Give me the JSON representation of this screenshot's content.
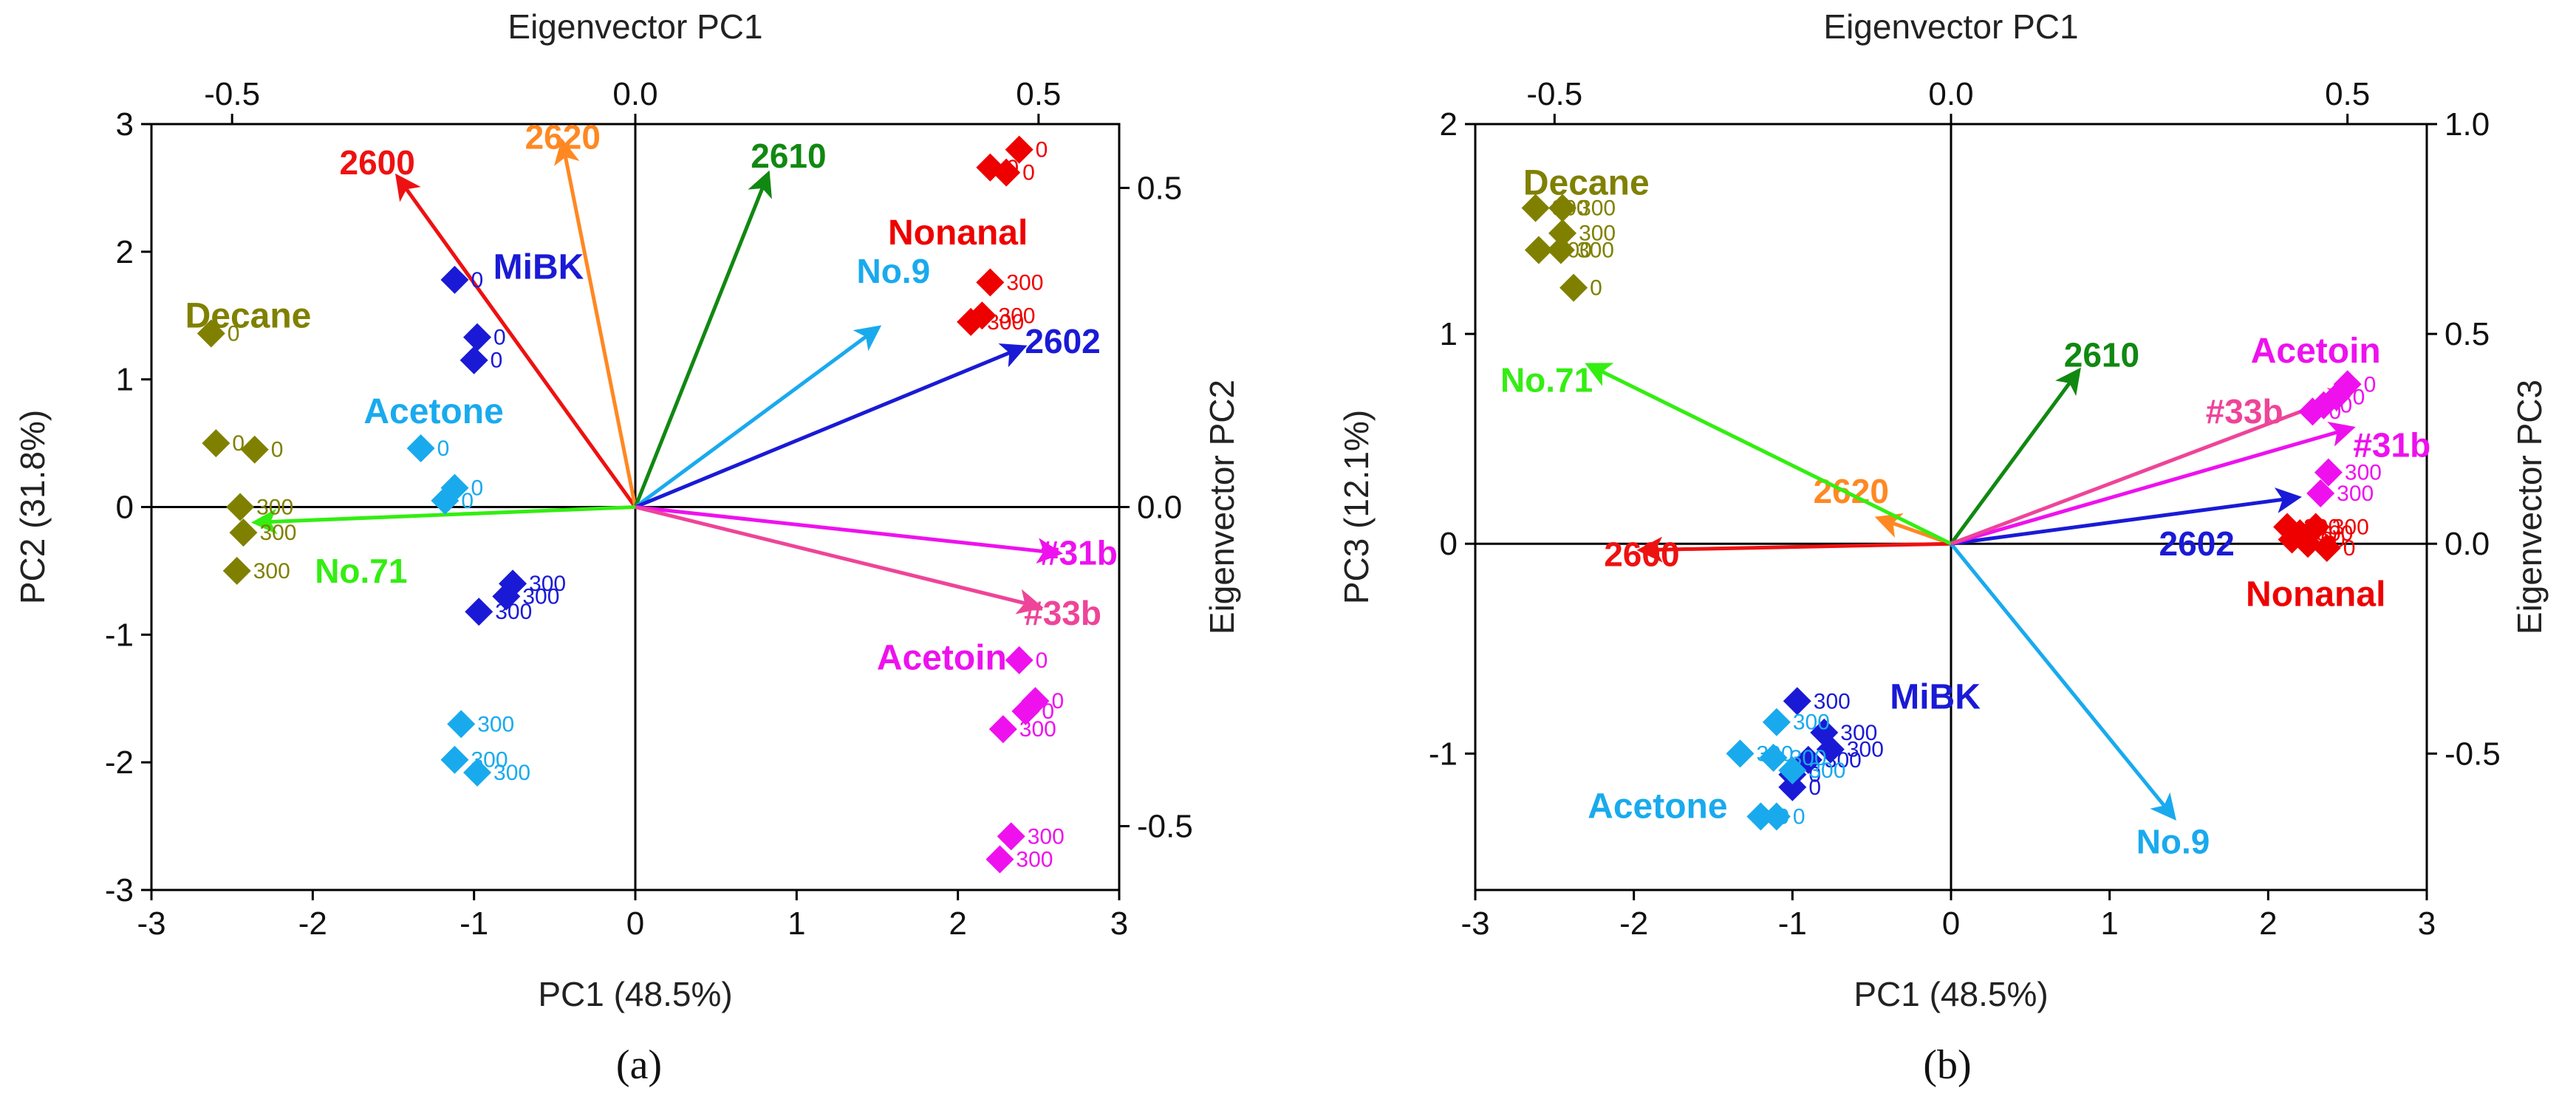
{
  "chart_data": [
    {
      "type": "scatter",
      "panel_label": "(a)",
      "title": "",
      "xlabel": "PC1 (48.5%)",
      "ylabel": "PC2 (31.8%)",
      "top_xlabel": "Eigenvector PC1",
      "right_ylabel": "Eigenvector PC2",
      "xlim": [
        -3,
        3
      ],
      "ylim": [
        -3,
        3
      ],
      "xticks": [
        "-3",
        "-2",
        "-1",
        "0",
        "1",
        "2",
        "3"
      ],
      "yticks": [
        "-3",
        "-2",
        "-1",
        "0",
        "1",
        "2",
        "3"
      ],
      "top_lim": [
        -0.6,
        0.6
      ],
      "top_ticks": [
        "-0.5",
        "0.0",
        "0.5"
      ],
      "right_lim": [
        -0.6,
        0.6
      ],
      "right_ticks": [
        "-0.5",
        "0.0",
        "0.5"
      ],
      "groups": [
        {
          "name": "Decane",
          "color": "#808000",
          "label_at": [
            -2.4,
            1.5
          ],
          "points": [
            {
              "x": -2.63,
              "y": 1.36,
              "label": "0"
            },
            {
              "x": -2.6,
              "y": 0.5,
              "label": "0"
            },
            {
              "x": -2.36,
              "y": 0.45,
              "label": "0"
            },
            {
              "x": -2.45,
              "y": 0.0,
              "label": "300"
            },
            {
              "x": -2.43,
              "y": -0.2,
              "label": "300"
            },
            {
              "x": -2.47,
              "y": -0.5,
              "label": "300"
            }
          ]
        },
        {
          "name": "MiBK",
          "color": "#1a1ad6",
          "label_at": [
            -0.6,
            1.88
          ],
          "points": [
            {
              "x": -1.12,
              "y": 1.78,
              "label": "0"
            },
            {
              "x": -0.98,
              "y": 1.33,
              "label": "0"
            },
            {
              "x": -1.0,
              "y": 1.15,
              "label": "0"
            },
            {
              "x": -0.76,
              "y": -0.6,
              "label": "300"
            },
            {
              "x": -0.8,
              "y": -0.7,
              "label": "300"
            },
            {
              "x": -0.97,
              "y": -0.82,
              "label": "300"
            }
          ]
        },
        {
          "name": "Acetone",
          "color": "#19aaee",
          "label_at": [
            -1.25,
            0.75
          ],
          "points": [
            {
              "x": -1.33,
              "y": 0.46,
              "label": "0"
            },
            {
              "x": -1.12,
              "y": 0.15,
              "label": "0"
            },
            {
              "x": -1.18,
              "y": 0.05,
              "label": "0"
            },
            {
              "x": -1.08,
              "y": -1.7,
              "label": "300"
            },
            {
              "x": -1.12,
              "y": -1.98,
              "label": "300"
            },
            {
              "x": -0.98,
              "y": -2.08,
              "label": "300"
            }
          ]
        },
        {
          "name": "Nonanal",
          "color": "#ee0000",
          "label_at": [
            2.0,
            2.15
          ],
          "points": [
            {
              "x": 2.38,
              "y": 2.8,
              "label": "0"
            },
            {
              "x": 2.2,
              "y": 2.66,
              "label": "0"
            },
            {
              "x": 2.3,
              "y": 2.62,
              "label": "0"
            },
            {
              "x": 2.2,
              "y": 1.76,
              "label": "300"
            },
            {
              "x": 2.15,
              "y": 1.5,
              "label": "300"
            },
            {
              "x": 2.08,
              "y": 1.45,
              "label": "300"
            }
          ]
        },
        {
          "name": "Acetoin",
          "color": "#ee11ee",
          "label_at": [
            1.9,
            -1.18
          ],
          "points": [
            {
              "x": 2.38,
              "y": -1.2,
              "label": "0"
            },
            {
              "x": 2.48,
              "y": -1.52,
              "label": "0"
            },
            {
              "x": 2.42,
              "y": -1.6,
              "label": "0"
            },
            {
              "x": 2.28,
              "y": -1.74,
              "label": "300"
            },
            {
              "x": 2.33,
              "y": -2.58,
              "label": "300"
            },
            {
              "x": 2.26,
              "y": -2.76,
              "label": "300"
            }
          ]
        }
      ],
      "loadings": [
        {
          "name": "2600",
          "color": "#ee1111",
          "x": -1.47,
          "y": 2.58,
          "label_at": [
            -1.6,
            2.7
          ]
        },
        {
          "name": "2620",
          "color": "#ff8822",
          "x": -0.45,
          "y": 2.85,
          "label_at": [
            -0.45,
            2.9
          ]
        },
        {
          "name": "2610",
          "color": "#118811",
          "x": 0.82,
          "y": 2.6,
          "label_at": [
            0.95,
            2.75
          ]
        },
        {
          "name": "No.9",
          "color": "#19aaee",
          "x": 1.5,
          "y": 1.4,
          "label_at": [
            1.6,
            1.85
          ]
        },
        {
          "name": "2602",
          "color": "#1a1ad6",
          "x": 2.4,
          "y": 1.25,
          "label_at": [
            2.65,
            1.3
          ]
        },
        {
          "name": "No.71",
          "color": "#33ee11",
          "x": -2.35,
          "y": -0.12,
          "label_at": [
            -1.7,
            -0.5
          ]
        },
        {
          "name": "#31b",
          "color": "#ee11ee",
          "x": 2.62,
          "y": -0.36,
          "label_at": [
            2.75,
            -0.36
          ]
        },
        {
          "name": "#33b",
          "color": "#ee4499",
          "x": 2.5,
          "y": -0.78,
          "label_at": [
            2.65,
            -0.83
          ]
        }
      ]
    },
    {
      "type": "scatter",
      "panel_label": "(b)",
      "title": "",
      "xlabel": "PC1 (48.5%)",
      "ylabel": "PC3 (12.1%)",
      "top_xlabel": "Eigenvector PC1",
      "right_ylabel": "Eigenvector PC3",
      "xlim": [
        -3,
        3
      ],
      "ylim": [
        -1.65,
        2.0
      ],
      "xticks": [
        "-3",
        "-2",
        "-1",
        "0",
        "1",
        "2",
        "3"
      ],
      "yticks": [
        "-1",
        "0",
        "1",
        "2"
      ],
      "top_lim": [
        -0.6,
        0.6
      ],
      "top_ticks": [
        "-0.5",
        "0.0",
        "0.5"
      ],
      "right_lim": [
        -0.825,
        1.0
      ],
      "right_ticks": [
        "-0.5",
        "0.0",
        "0.5",
        "1.0"
      ],
      "groups": [
        {
          "name": "Decane",
          "color": "#808000",
          "label_at": [
            -2.3,
            1.72
          ],
          "points": [
            {
              "x": -2.62,
              "y": 1.6,
              "label": "300"
            },
            {
              "x": -2.45,
              "y": 1.6,
              "label": "300"
            },
            {
              "x": -2.45,
              "y": 1.48,
              "label": "300"
            },
            {
              "x": -2.6,
              "y": 1.4,
              "label": "300"
            },
            {
              "x": -2.46,
              "y": 1.4,
              "label": "300"
            },
            {
              "x": -2.38,
              "y": 1.22,
              "label": "0"
            }
          ]
        },
        {
          "name": "MiBK",
          "color": "#1a1ad6",
          "label_at": [
            -0.1,
            -0.73
          ],
          "points": [
            {
              "x": -0.97,
              "y": -0.75,
              "label": "300"
            },
            {
              "x": -0.8,
              "y": -0.9,
              "label": "300"
            },
            {
              "x": -0.76,
              "y": -0.98,
              "label": "300"
            },
            {
              "x": -0.9,
              "y": -1.03,
              "label": "300"
            },
            {
              "x": -1.0,
              "y": -1.1,
              "label": "0"
            },
            {
              "x": -1.0,
              "y": -1.16,
              "label": "0"
            }
          ]
        },
        {
          "name": "Acetone",
          "color": "#19aaee",
          "label_at": [
            -1.85,
            -1.25
          ],
          "points": [
            {
              "x": -1.1,
              "y": -0.85,
              "label": "300"
            },
            {
              "x": -1.33,
              "y": -1.0,
              "label": "300"
            },
            {
              "x": -1.12,
              "y": -1.02,
              "label": "300"
            },
            {
              "x": -1.0,
              "y": -1.08,
              "label": "300"
            },
            {
              "x": -1.2,
              "y": -1.3,
              "label": "0"
            },
            {
              "x": -1.1,
              "y": -1.3,
              "label": "0"
            }
          ]
        },
        {
          "name": "Nonanal",
          "color": "#ee0000",
          "label_at": [
            2.3,
            -0.24
          ],
          "points": [
            {
              "x": 2.12,
              "y": 0.08,
              "label": "300"
            },
            {
              "x": 2.2,
              "y": 0.05,
              "label": "300"
            },
            {
              "x": 2.3,
              "y": 0.08,
              "label": "300"
            },
            {
              "x": 2.15,
              "y": 0.02,
              "label": "300"
            },
            {
              "x": 2.25,
              "y": 0.0,
              "label": "0"
            },
            {
              "x": 2.37,
              "y": -0.02,
              "label": "0"
            }
          ]
        },
        {
          "name": "Acetoin",
          "color": "#ee11ee",
          "label_at": [
            2.3,
            0.92
          ],
          "points": [
            {
              "x": 2.5,
              "y": 0.76,
              "label": "0"
            },
            {
              "x": 2.43,
              "y": 0.7,
              "label": "0"
            },
            {
              "x": 2.35,
              "y": 0.66,
              "label": "0"
            },
            {
              "x": 2.28,
              "y": 0.63,
              "label": "0"
            },
            {
              "x": 2.38,
              "y": 0.34,
              "label": "300"
            },
            {
              "x": 2.33,
              "y": 0.24,
              "label": "300"
            }
          ]
        }
      ],
      "loadings": [
        {
          "name": "2610",
          "color": "#118811",
          "x": 0.8,
          "y": 0.82,
          "label_at": [
            0.95,
            0.9
          ]
        },
        {
          "name": "2620",
          "color": "#ff8822",
          "x": -0.45,
          "y": 0.12,
          "label_at": [
            -0.63,
            0.25
          ]
        },
        {
          "name": "2600",
          "color": "#ee1111",
          "x": -1.95,
          "y": -0.03,
          "label_at": [
            -1.95,
            -0.05
          ]
        },
        {
          "name": "No.71",
          "color": "#33ee11",
          "x": -2.28,
          "y": 0.85,
          "label_at": [
            -2.55,
            0.78
          ]
        },
        {
          "name": "No.9",
          "color": "#19aaee",
          "x": 1.4,
          "y": -1.3,
          "label_at": [
            1.4,
            -1.42
          ]
        },
        {
          "name": "2602",
          "color": "#1a1ad6",
          "x": 2.18,
          "y": 0.22,
          "label_at": [
            1.55,
            0.0
          ]
        },
        {
          "name": "#31b",
          "color": "#ee11ee",
          "x": 2.52,
          "y": 0.55,
          "label_at": [
            2.78,
            0.47
          ]
        },
        {
          "name": "#33b",
          "color": "#ee4499",
          "x": 2.52,
          "y": 0.72,
          "label_at": [
            1.85,
            0.63
          ]
        }
      ]
    }
  ]
}
